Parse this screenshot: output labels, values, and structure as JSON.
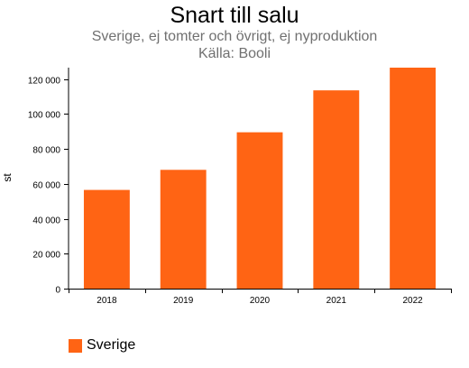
{
  "chart_data": {
    "type": "bar",
    "title": "Snart till salu",
    "subtitle": "Sverige, ej tomter och övrigt, ej nyproduktion",
    "source": "Källa: Booli",
    "xlabel": "",
    "ylabel": "st",
    "categories": [
      "2018",
      "2019",
      "2020",
      "2021",
      "2022"
    ],
    "series": [
      {
        "name": "Sverige",
        "values": [
          56500,
          68000,
          89500,
          113500,
          126500
        ],
        "color": "#ff6414"
      }
    ],
    "ylim": [
      0,
      126500
    ],
    "yticks": [
      0,
      20000,
      40000,
      60000,
      80000,
      100000,
      120000
    ],
    "ytick_labels": [
      "0",
      "20 000",
      "40 000",
      "60 000",
      "80 000",
      "100 000",
      "120 000"
    ],
    "grid": false,
    "legend_position": "bottom-left"
  }
}
